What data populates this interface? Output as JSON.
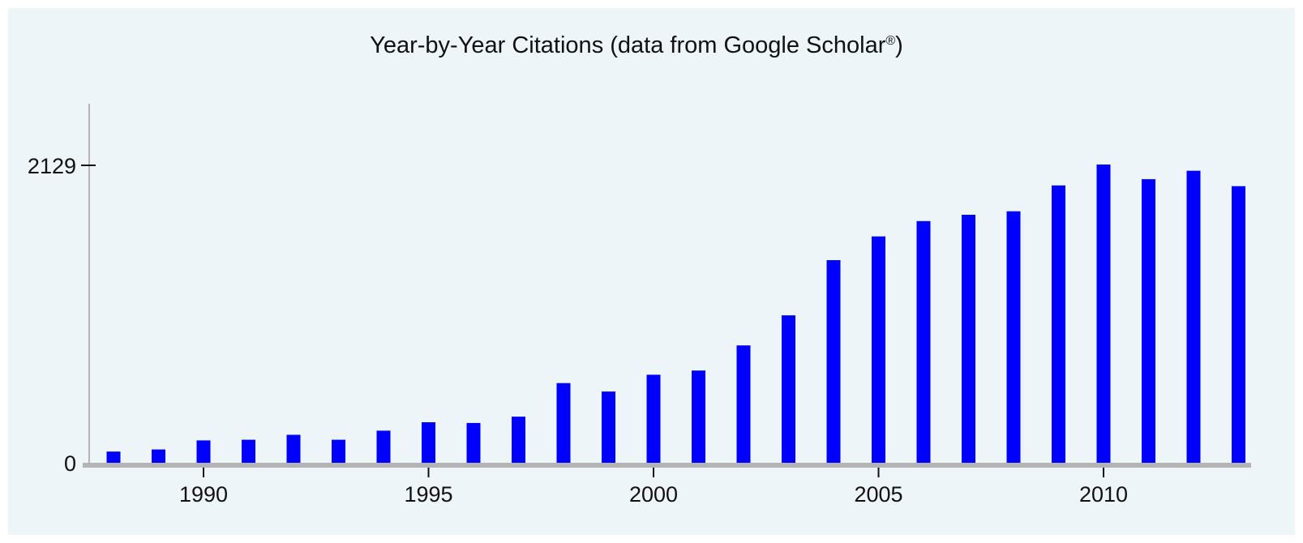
{
  "chart_data": {
    "type": "bar",
    "title": "Year-by-Year Citations (data from Google Scholar",
    "title_mark": "®",
    "title_suffix": ")",
    "x": [
      1988,
      1989,
      1990,
      1991,
      1992,
      1993,
      1994,
      1995,
      1996,
      1997,
      1998,
      1999,
      2000,
      2001,
      2002,
      2003,
      2004,
      2005,
      2006,
      2007,
      2008,
      2009,
      2010,
      2011,
      2012,
      2013
    ],
    "values": [
      80,
      95,
      160,
      165,
      200,
      165,
      230,
      290,
      285,
      330,
      570,
      510,
      630,
      660,
      840,
      1055,
      1450,
      1620,
      1730,
      1775,
      1800,
      1985,
      2135,
      2030,
      2090,
      1980
    ],
    "x_tick_labels": [
      "1990",
      "1995",
      "2000",
      "2005",
      "2010"
    ],
    "y_tick_labels": [
      "0",
      "2129"
    ],
    "y_ticks": [
      0,
      2129
    ],
    "xlabel": "",
    "ylabel": "",
    "ylim": [
      0,
      2550
    ],
    "grid": false,
    "colors": {
      "bar": "#0000ff",
      "axis": "#b4b4b4",
      "background": "#edf5f8"
    }
  }
}
